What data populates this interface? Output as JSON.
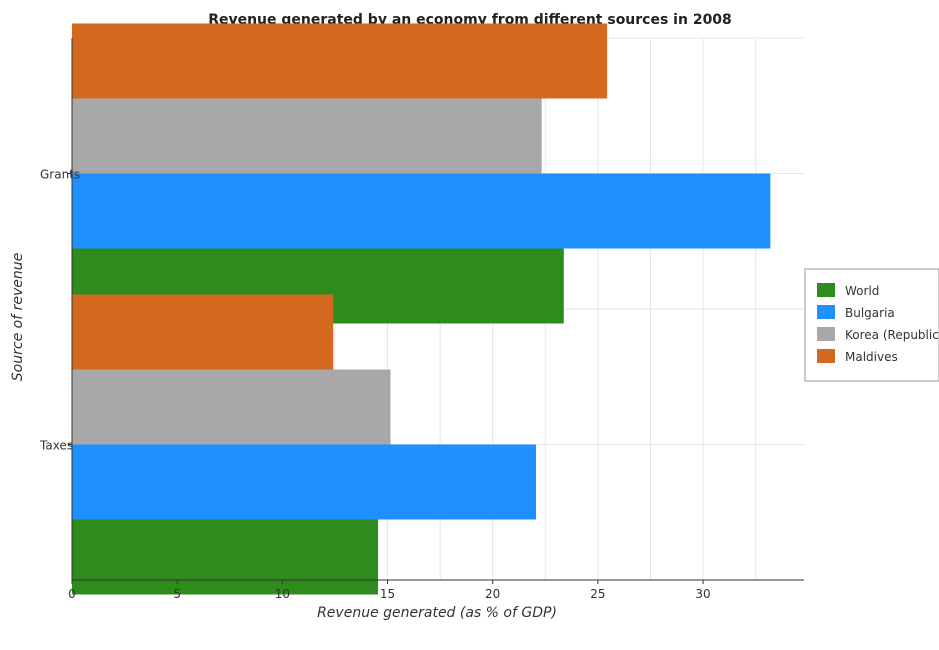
{
  "chart_data": {
    "type": "bar",
    "orientation": "horizontal",
    "title": "Revenue generated by an economy from different sources in 2008",
    "xlabel": "Revenue generated (as % of GDP)",
    "ylabel": "Source of revenue",
    "categories": [
      "Grants",
      "Taxes"
    ],
    "xlim": [
      0,
      34.8
    ],
    "xticks": [
      0,
      5,
      10,
      15,
      20,
      25,
      30
    ],
    "grid": true,
    "legend_position": "right",
    "series": [
      {
        "name": "World",
        "color": "#2e8b1e",
        "values": [
          23.38,
          14.55
        ]
      },
      {
        "name": "Bulgaria",
        "color": "#1e90ff",
        "values": [
          33.2,
          22.06
        ]
      },
      {
        "name": "Korea (Republic)",
        "color": "#a8a8a8",
        "values": [
          22.33,
          15.14
        ]
      },
      {
        "name": "Maldives",
        "color": "#d2691e",
        "values": [
          25.44,
          12.42
        ]
      }
    ]
  }
}
